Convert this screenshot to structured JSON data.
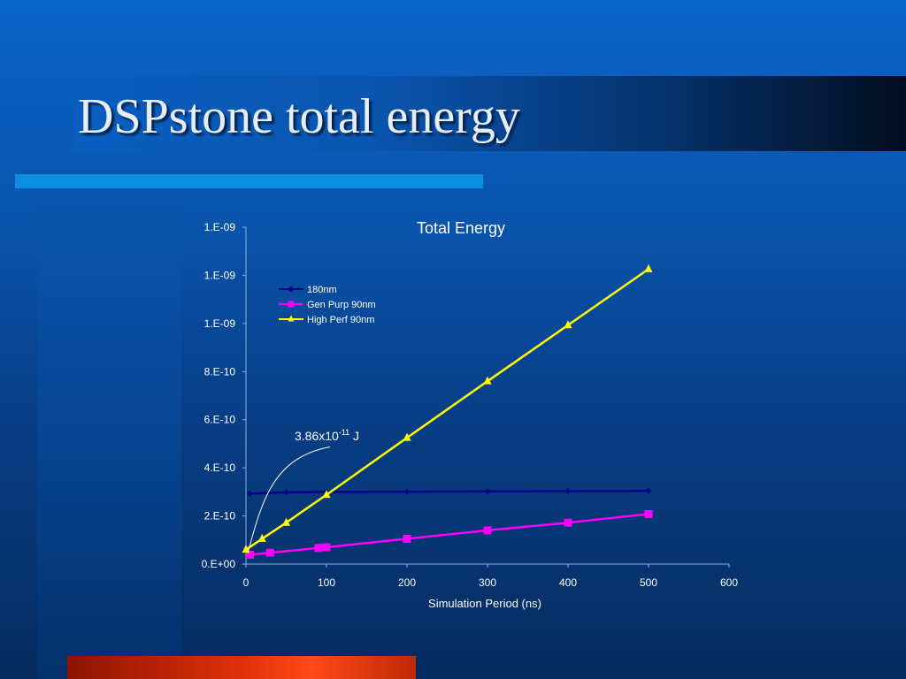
{
  "slide": {
    "title": "DSPstone total energy"
  },
  "colors": {
    "accent_bar": "#0d8fe0",
    "bottom_bar": "#e0300a",
    "series_180nm": "#00008b",
    "series_gen_purp": "#ff00ff",
    "series_high_perf": "#ffff00"
  },
  "chart_data": {
    "type": "line",
    "title": "Total Energy",
    "xlabel": "Simulation Period (ns)",
    "ylabel": "",
    "xlim": [
      0,
      600
    ],
    "ylim": [
      0,
      1.4e-09
    ],
    "xticks": [
      0,
      100,
      200,
      300,
      400,
      500,
      600
    ],
    "xtick_labels": [
      "0",
      "100",
      "200",
      "300",
      "400",
      "500",
      "600"
    ],
    "yticks": [
      0,
      2e-10,
      4e-10,
      6e-10,
      8e-10,
      1e-09,
      1.2e-09,
      1.4e-09
    ],
    "ytick_labels": [
      "0.E+00",
      "2.E-10",
      "4.E-10",
      "6.E-10",
      "8.E-10",
      "1.E-09",
      "1.E-09",
      "1.E-09"
    ],
    "grid": false,
    "legend_position": "top-left",
    "series": [
      {
        "name": "180nm",
        "color": "#00008b",
        "marker": "diamond",
        "points": [
          [
            5,
            2.93e-10
          ],
          [
            50,
            2.98e-10
          ],
          [
            100,
            3e-10
          ],
          [
            200,
            3.01e-10
          ],
          [
            300,
            3.02e-10
          ],
          [
            400,
            3.03e-10
          ],
          [
            500,
            3.04e-10
          ]
        ]
      },
      {
        "name": "Gen Purp 90nm",
        "color": "#ff00ff",
        "marker": "square",
        "points": [
          [
            5,
            3.9e-11
          ],
          [
            30,
            4.7e-11
          ],
          [
            90,
            6.7e-11
          ],
          [
            100,
            7e-11
          ],
          [
            200,
            1.05e-10
          ],
          [
            300,
            1.4e-10
          ],
          [
            400,
            1.72e-10
          ],
          [
            500,
            2.08e-10
          ]
        ]
      },
      {
        "name": "High Perf 90nm",
        "color": "#ffff00",
        "marker": "triangle",
        "points": [
          [
            0,
            6e-11
          ],
          [
            20,
            1.05e-10
          ],
          [
            50,
            1.72e-10
          ],
          [
            100,
            2.88e-10
          ],
          [
            200,
            5.25e-10
          ],
          [
            300,
            7.6e-10
          ],
          [
            400,
            9.93e-10
          ],
          [
            500,
            1.226e-09
          ]
        ]
      }
    ],
    "annotation": {
      "text_base": "3.86x10",
      "text_exp": "-11",
      "text_unit": " J",
      "target": [
        0,
        3.86e-11
      ]
    }
  }
}
